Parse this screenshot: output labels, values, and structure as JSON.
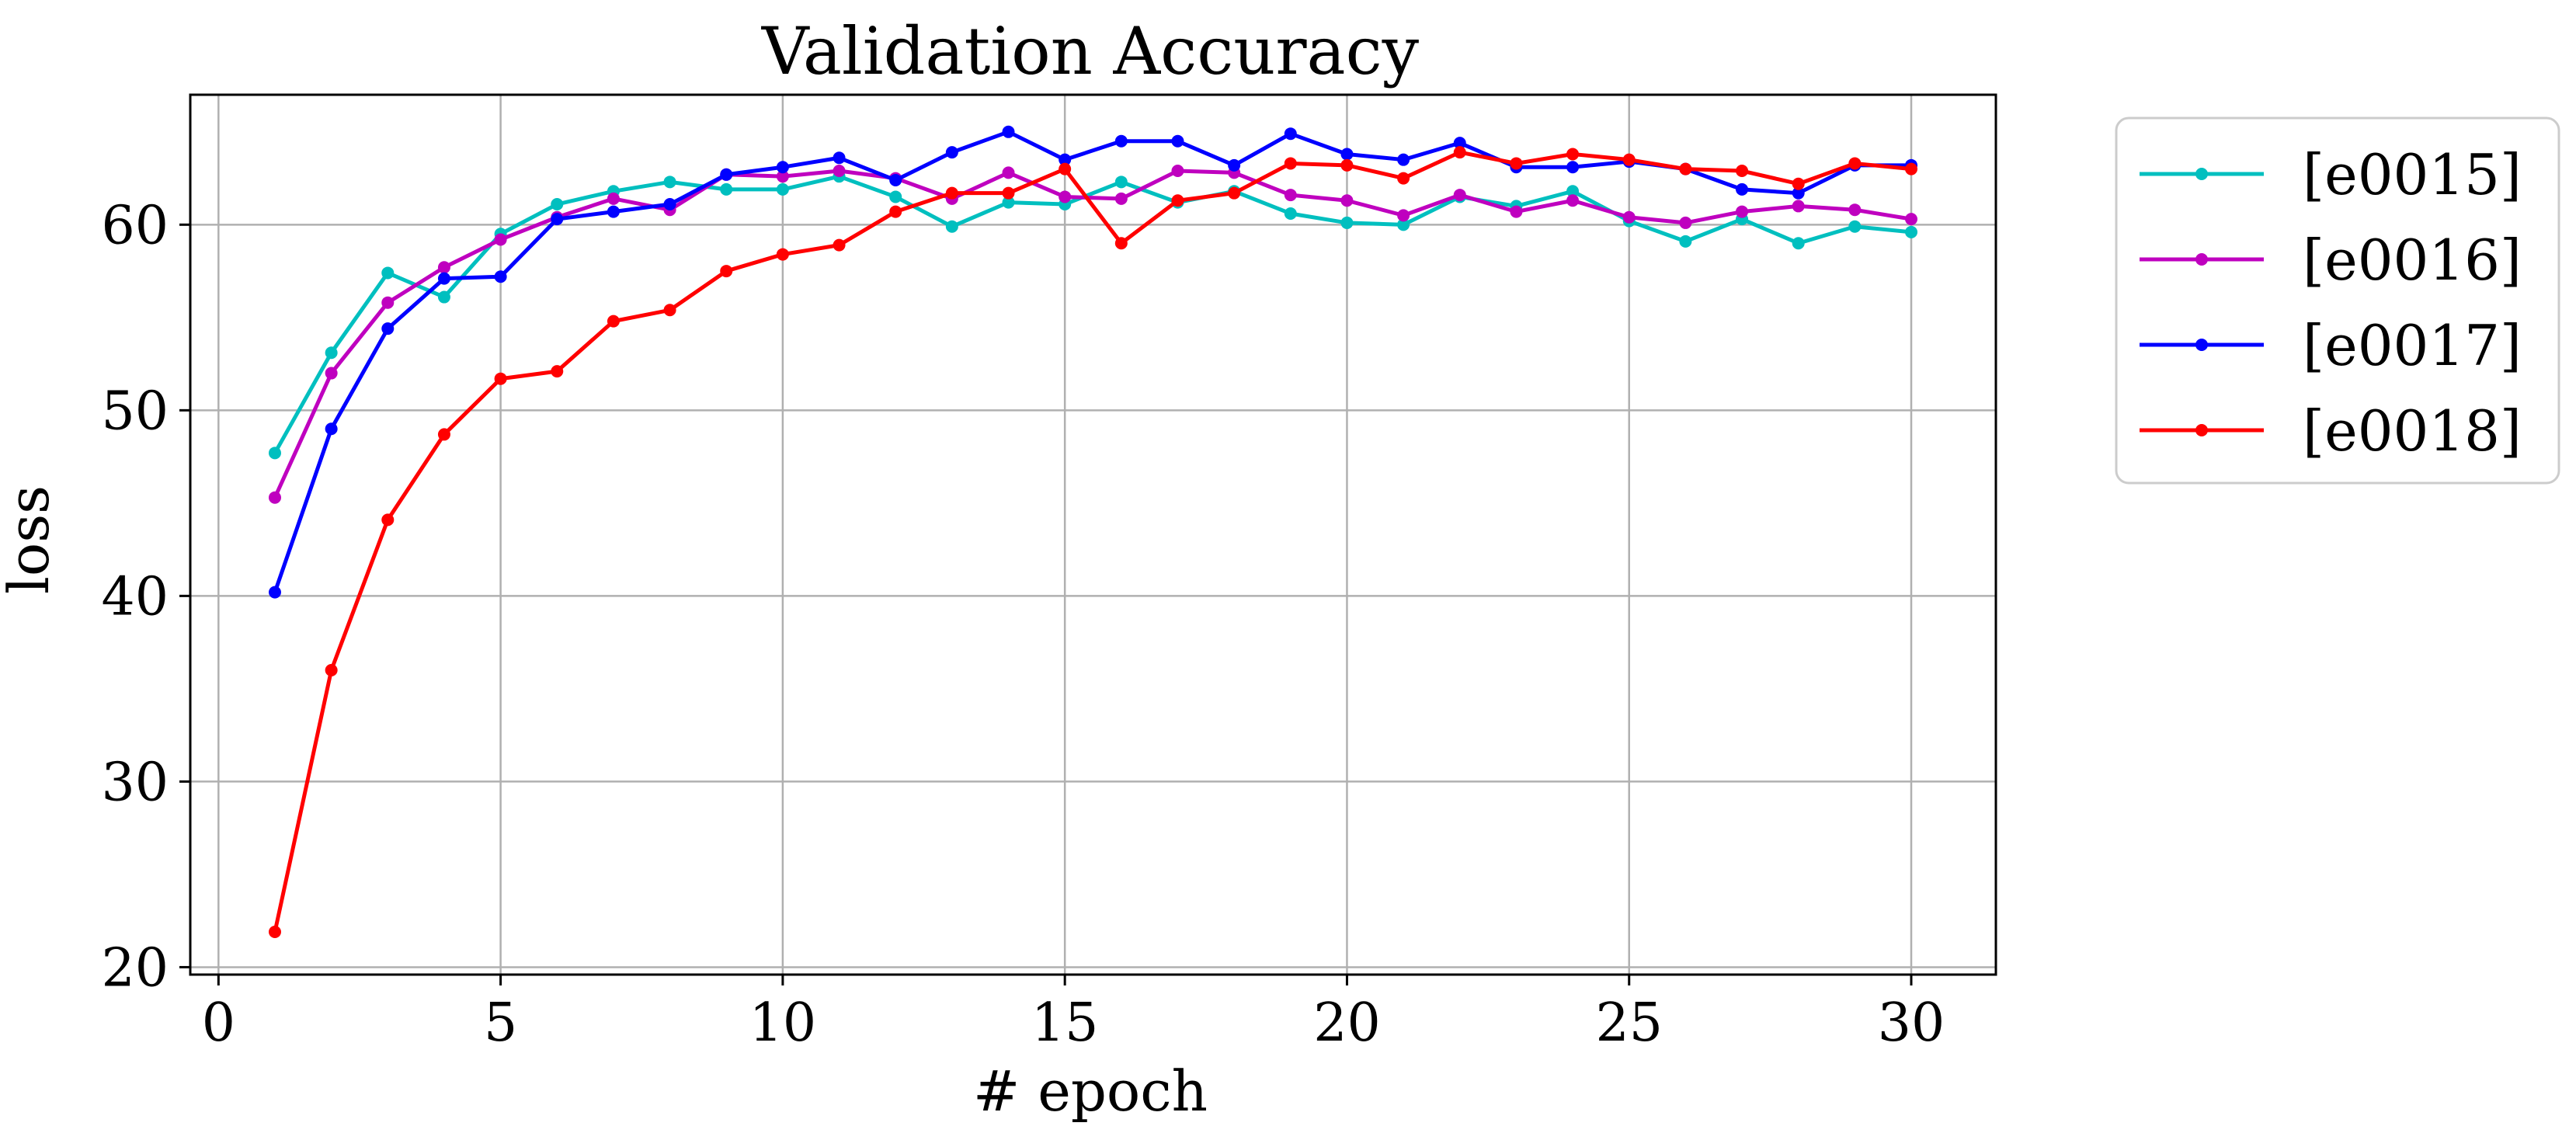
{
  "chart_data": {
    "type": "line",
    "title": "Validation Accuracy",
    "xlabel": "# epoch",
    "ylabel": "loss",
    "xlim": [
      -0.5,
      31.5
    ],
    "ylim": [
      19.6,
      67.0
    ],
    "xticks": [
      0,
      5,
      10,
      15,
      20,
      25,
      30
    ],
    "yticks": [
      20,
      30,
      40,
      50,
      60
    ],
    "grid": true,
    "legend_position": "outside-right-top",
    "x": [
      1,
      2,
      3,
      4,
      5,
      6,
      7,
      8,
      9,
      10,
      11,
      12,
      13,
      14,
      15,
      16,
      17,
      18,
      19,
      20,
      21,
      22,
      23,
      24,
      25,
      26,
      27,
      28,
      29,
      30
    ],
    "series": [
      {
        "name": "[e0015]",
        "color": "#00bfbf",
        "values": [
          47.7,
          53.1,
          57.4,
          56.1,
          59.5,
          61.1,
          61.8,
          62.3,
          61.9,
          61.9,
          62.6,
          61.5,
          59.9,
          61.2,
          61.1,
          62.3,
          61.2,
          61.8,
          60.6,
          60.1,
          60.0,
          61.5,
          61.0,
          61.8,
          60.2,
          59.1,
          60.3,
          59.0,
          59.9,
          59.6
        ]
      },
      {
        "name": "[e0016]",
        "color": "#bf00bf",
        "values": [
          45.3,
          52.0,
          55.8,
          57.7,
          59.2,
          60.4,
          61.4,
          60.8,
          62.7,
          62.6,
          62.9,
          62.5,
          61.4,
          62.8,
          61.5,
          61.4,
          62.9,
          62.8,
          61.6,
          61.3,
          60.5,
          61.6,
          60.7,
          61.3,
          60.4,
          60.1,
          60.7,
          61.0,
          60.8,
          60.3
        ]
      },
      {
        "name": "[e0017]",
        "color": "#0000ff",
        "values": [
          40.2,
          49.0,
          54.4,
          57.1,
          57.2,
          60.3,
          60.7,
          61.1,
          62.7,
          63.1,
          63.6,
          62.4,
          63.9,
          65.0,
          63.5,
          64.5,
          64.5,
          63.2,
          64.9,
          63.8,
          63.5,
          64.4,
          63.1,
          63.1,
          63.4,
          63.0,
          61.9,
          61.7,
          63.2,
          63.2
        ]
      },
      {
        "name": "[e0018]",
        "color": "#ff0000",
        "values": [
          21.9,
          36.0,
          44.1,
          48.7,
          51.7,
          52.1,
          54.8,
          55.4,
          57.5,
          58.4,
          58.9,
          60.7,
          61.7,
          61.7,
          63.0,
          59.0,
          61.3,
          61.7,
          63.3,
          63.2,
          62.5,
          63.9,
          63.3,
          63.8,
          63.5,
          63.0,
          62.9,
          62.2,
          63.3,
          63.0
        ]
      }
    ]
  }
}
